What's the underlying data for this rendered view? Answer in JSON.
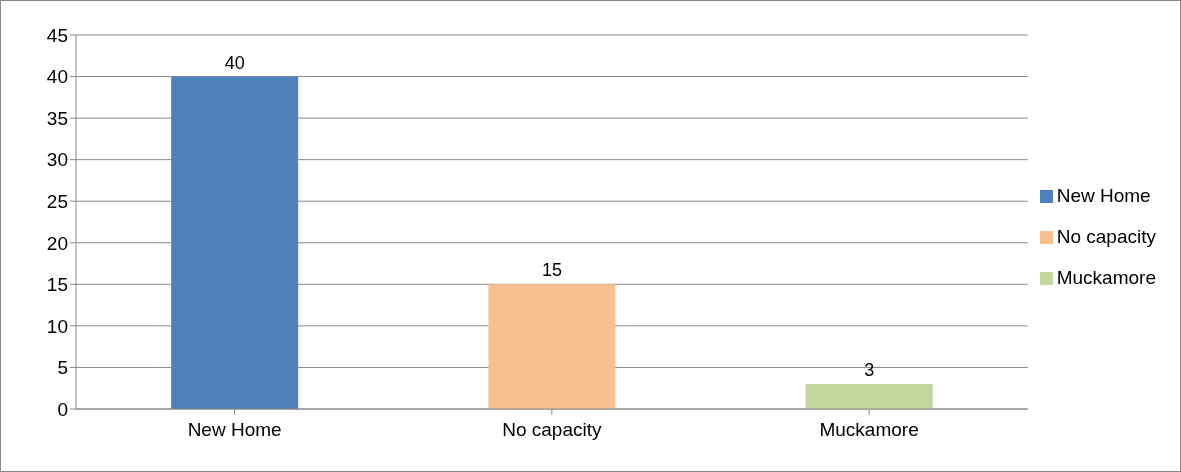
{
  "chart_data": {
    "type": "bar",
    "categories": [
      "New Home",
      "No capacity",
      "Muckamore"
    ],
    "stacked": true,
    "series": [
      {
        "name": "New Home",
        "color": "#4f81bd",
        "values": [
          40,
          null,
          null
        ]
      },
      {
        "name": "No capacity",
        "color": "#f9c08f",
        "values": [
          null,
          15,
          null
        ]
      },
      {
        "name": "Muckamore",
        "color": "#c3d69b",
        "values": [
          null,
          null,
          3
        ]
      }
    ],
    "ylim": [
      0,
      45
    ],
    "yticks": [
      0,
      5,
      10,
      15,
      20,
      25,
      30,
      35,
      40,
      45
    ],
    "grid": "y",
    "legend": "right",
    "data_labels": true
  }
}
